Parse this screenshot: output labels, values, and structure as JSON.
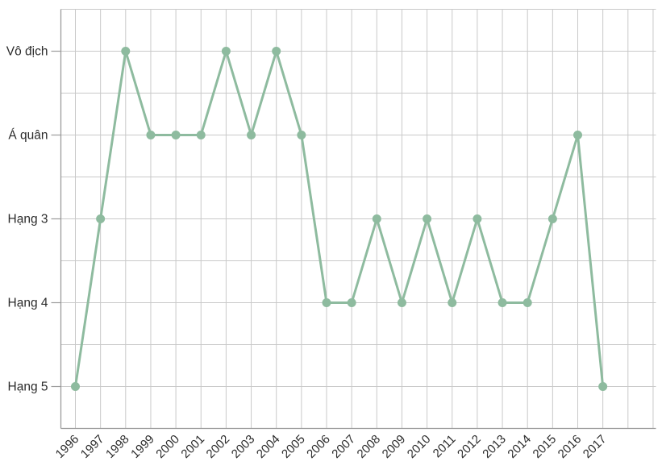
{
  "chart_data": {
    "type": "line",
    "title": "",
    "xlabel": "",
    "ylabel": "",
    "categories": [
      "1996",
      "1997",
      "1998",
      "1999",
      "2000",
      "2001",
      "2002",
      "2003",
      "2004",
      "2005",
      "2006",
      "2007",
      "2008",
      "2009",
      "2010",
      "2011",
      "2012",
      "2013",
      "2014",
      "2015",
      "2016",
      "2017"
    ],
    "values": [
      5,
      3,
      1,
      2,
      2,
      2,
      1,
      2,
      1,
      2,
      4,
      4,
      3,
      4,
      3,
      4,
      3,
      4,
      4,
      3,
      2,
      5
    ],
    "y_tick_labels": [
      "Vô địch",
      "Á quân",
      "Hạng 3",
      "Hạng 4",
      "Hạng 5"
    ],
    "y_tick_values": [
      1,
      2,
      3,
      4,
      5
    ],
    "ylim": [
      1,
      5
    ],
    "grid": true,
    "legend": "none",
    "colors": {
      "line": "#8ebb9f",
      "marker": "#8ebb9f",
      "grid": "#c9c9c9",
      "axis": "#9b9b9b",
      "label": "#2b2b2b"
    }
  }
}
